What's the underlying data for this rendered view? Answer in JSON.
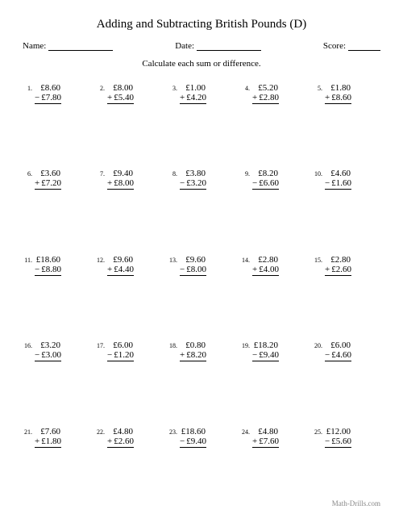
{
  "title": "Adding and Subtracting British Pounds (D)",
  "name_label": "Name:",
  "date_label": "Date:",
  "score_label": "Score:",
  "instruction": "Calculate each sum or difference.",
  "footer": "Math-Drills.com",
  "style": {
    "page_bg": "#ffffff",
    "text_color": "#000000",
    "footer_color": "#888888",
    "font_family": "Times New Roman, serif",
    "title_fontsize": 15,
    "header_fontsize": 11,
    "instruction_fontsize": 11,
    "problem_fontsize": 11,
    "numeral_fontsize": 8,
    "footer_fontsize": 9,
    "underline_name_width": 80,
    "underline_date_width": 80,
    "underline_score_width": 40,
    "grid_cols": 5,
    "grid_rows": 5
  },
  "problems": [
    {
      "n": "1.",
      "top": "£8.60",
      "op": "−",
      "bot": "£7.80"
    },
    {
      "n": "2.",
      "top": "£8.00",
      "op": "+",
      "bot": "£5.40"
    },
    {
      "n": "3.",
      "top": "£1.00",
      "op": "+",
      "bot": "£4.20"
    },
    {
      "n": "4.",
      "top": "£5.20",
      "op": "+",
      "bot": "£2.80"
    },
    {
      "n": "5.",
      "top": "£1.80",
      "op": "+",
      "bot": "£8.60"
    },
    {
      "n": "6.",
      "top": "£3.60",
      "op": "+",
      "bot": "£7.20"
    },
    {
      "n": "7.",
      "top": "£9.40",
      "op": "+",
      "bot": "£8.00"
    },
    {
      "n": "8.",
      "top": "£3.80",
      "op": "−",
      "bot": "£3.20"
    },
    {
      "n": "9.",
      "top": "£8.20",
      "op": "−",
      "bot": "£6.60"
    },
    {
      "n": "10.",
      "top": "£4.60",
      "op": "−",
      "bot": "£1.60"
    },
    {
      "n": "11.",
      "top": "£18.60",
      "op": "−",
      "bot": "£8.80"
    },
    {
      "n": "12.",
      "top": "£9.60",
      "op": "+",
      "bot": "£4.40"
    },
    {
      "n": "13.",
      "top": "£9.60",
      "op": "−",
      "bot": "£8.00"
    },
    {
      "n": "14.",
      "top": "£2.80",
      "op": "+",
      "bot": "£4.00"
    },
    {
      "n": "15.",
      "top": "£2.80",
      "op": "+",
      "bot": "£2.60"
    },
    {
      "n": "16.",
      "top": "£3.20",
      "op": "−",
      "bot": "£3.00"
    },
    {
      "n": "17.",
      "top": "£6.00",
      "op": "−",
      "bot": "£1.20"
    },
    {
      "n": "18.",
      "top": "£0.80",
      "op": "+",
      "bot": "£8.20"
    },
    {
      "n": "19.",
      "top": "£18.20",
      "op": "−",
      "bot": "£9.40"
    },
    {
      "n": "20.",
      "top": "£6.00",
      "op": "−",
      "bot": "£4.60"
    },
    {
      "n": "21.",
      "top": "£7.60",
      "op": "+",
      "bot": "£1.80"
    },
    {
      "n": "22.",
      "top": "£4.80",
      "op": "+",
      "bot": "£2.60"
    },
    {
      "n": "23.",
      "top": "£18.60",
      "op": "−",
      "bot": "£9.40"
    },
    {
      "n": "24.",
      "top": "£4.80",
      "op": "+",
      "bot": "£7.60"
    },
    {
      "n": "25.",
      "top": "£12.00",
      "op": "−",
      "bot": "£5.60"
    }
  ]
}
